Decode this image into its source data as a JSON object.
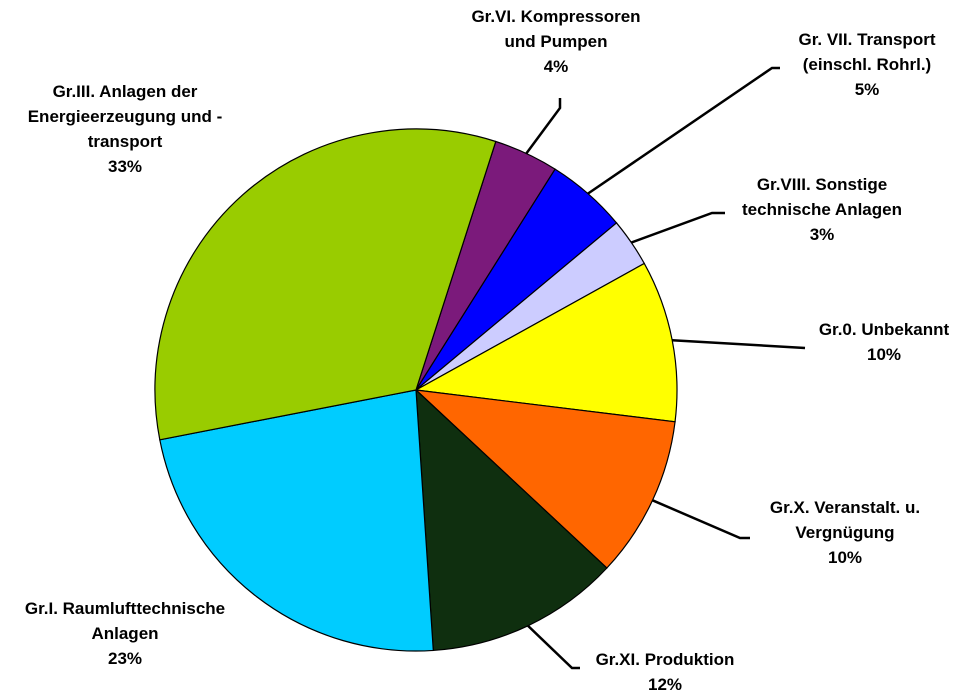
{
  "chart_data": {
    "type": "pie",
    "categories": [
      [
        "Gr.VI. Kompressoren",
        "und Pumpen"
      ],
      [
        "Gr. VII. Transport",
        "(einschl. Rohrl.)"
      ],
      [
        "Gr.VIII. Sonstige",
        "technische Anlagen"
      ],
      [
        "Gr.0. Unbekannt"
      ],
      [
        "Gr.X. Veranstalt. u.",
        "Vergnügung"
      ],
      [
        "Gr.XI. Produktion"
      ],
      [
        "Gr.I. Raumlufttechnische",
        "Anlagen"
      ],
      [
        "Gr.III. Anlagen der",
        "Energieerzeugung und -",
        "transport"
      ]
    ],
    "values": [
      4,
      5,
      3,
      10,
      10,
      12,
      23,
      33
    ],
    "value_labels": [
      "4%",
      "5%",
      "3%",
      "10%",
      "10%",
      "12%",
      "23%",
      "33%"
    ],
    "colors": [
      "#7b1a7b",
      "#0000ff",
      "#ccccff",
      "#ffff00",
      "#ff6600",
      "#0f2f0f",
      "#00ccff",
      "#99cc00"
    ]
  }
}
